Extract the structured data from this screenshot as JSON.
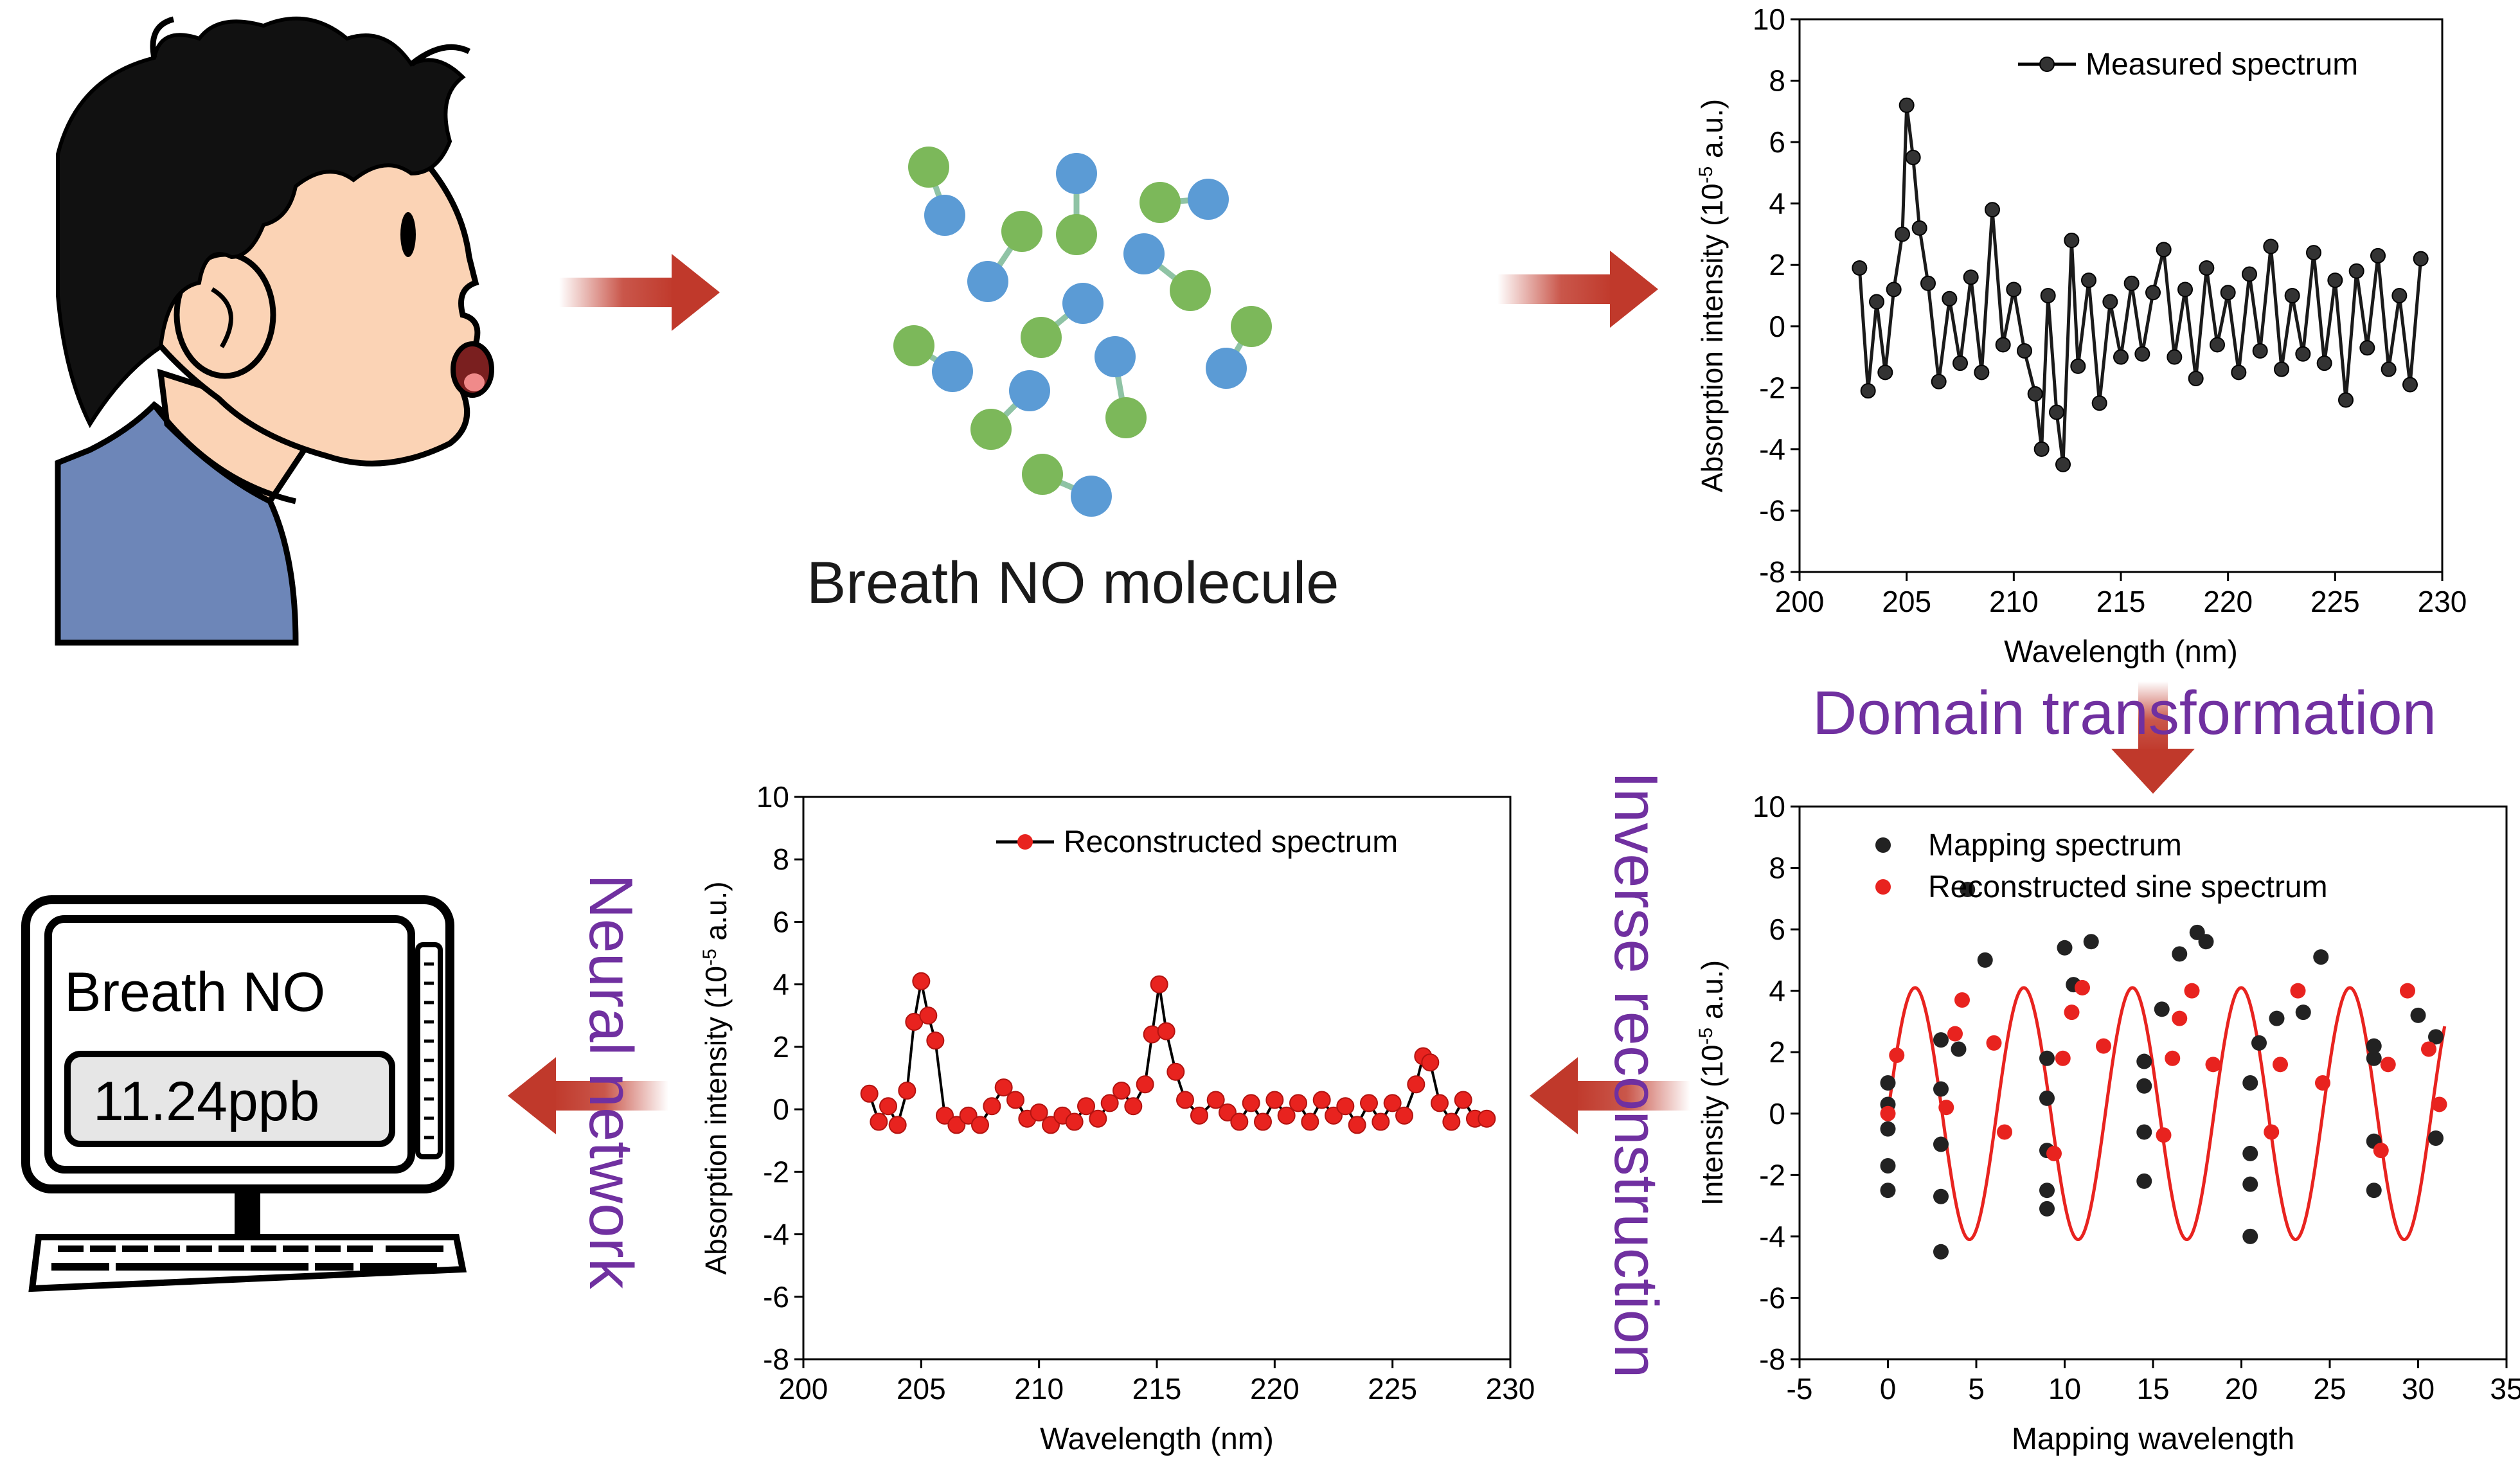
{
  "molecule_caption": "Breath NO molecule",
  "labels": {
    "domain_transformation": "Domain transformation",
    "inverse_reconstruction": "Inverse reconstruction",
    "neural_network": "Neural network"
  },
  "monitor": {
    "title": "Breath NO",
    "value": "11.24ppb"
  },
  "colors": {
    "arrow": "#c0392b",
    "label_purple": "#7030a0",
    "molecule_green": "#7cb85a",
    "molecule_blue": "#5b9bd5",
    "series_black": "#1a1a1a",
    "series_red": "#e8231f",
    "skin": "#fbd3b5",
    "shirt": "#6d86b8"
  },
  "chart_data": [
    {
      "id": "measured",
      "type": "line",
      "title": "",
      "legend": [
        "Measured spectrum"
      ],
      "legend_position": "top-center",
      "xlabel": "Wavelength (nm)",
      "ylabel_main": "Absorption intensity (10",
      "ylabel_sup": "-5",
      "ylabel_end": " a.u.)",
      "xlim": [
        200,
        230
      ],
      "ylim": [
        -8,
        10
      ],
      "xticks": [
        200,
        205,
        210,
        215,
        220,
        225,
        230
      ],
      "yticks": [
        -8,
        -6,
        -4,
        -2,
        0,
        2,
        4,
        6,
        8,
        10
      ],
      "series": [
        {
          "name": "Measured spectrum",
          "color": "#1a1a1a",
          "x": [
            202.8,
            203.2,
            203.6,
            204.0,
            204.4,
            204.8,
            205.0,
            205.3,
            205.6,
            206.0,
            206.5,
            207.0,
            207.5,
            208.0,
            208.5,
            209.0,
            209.5,
            210.0,
            210.5,
            211.0,
            211.3,
            211.6,
            212.0,
            212.3,
            212.7,
            213.0,
            213.5,
            214.0,
            214.5,
            215.0,
            215.5,
            216.0,
            216.5,
            217.0,
            217.5,
            218.0,
            218.5,
            219.0,
            219.5,
            220.0,
            220.5,
            221.0,
            221.5,
            222.0,
            222.5,
            223.0,
            223.5,
            224.0,
            224.5,
            225.0,
            225.5,
            226.0,
            226.5,
            227.0,
            227.5,
            228.0,
            228.5,
            229.0
          ],
          "y": [
            1.9,
            -2.1,
            0.8,
            -1.5,
            1.2,
            3.0,
            7.2,
            5.5,
            3.2,
            1.4,
            -1.8,
            0.9,
            -1.2,
            1.6,
            -1.5,
            3.8,
            -0.6,
            1.2,
            -0.8,
            -2.2,
            -4.0,
            1.0,
            -2.8,
            -4.5,
            2.8,
            -1.3,
            1.5,
            -2.5,
            0.8,
            -1.0,
            1.4,
            -0.9,
            1.1,
            2.5,
            -1.0,
            1.2,
            -1.7,
            1.9,
            -0.6,
            1.1,
            -1.5,
            1.7,
            -0.8,
            2.6,
            -1.4,
            1.0,
            -0.9,
            2.4,
            -1.2,
            1.5,
            -2.4,
            1.8,
            -0.7,
            2.3,
            -1.4,
            1.0,
            -1.9,
            2.2
          ]
        }
      ]
    },
    {
      "id": "mapping",
      "type": "scatter",
      "title": "",
      "legend": [
        "Mapping spectrum",
        "Reconstructed sine spectrum"
      ],
      "legend_position": "top-left",
      "xlabel": "Mapping  wavelength",
      "ylabel_main": "Intensity (10",
      "ylabel_sup": "-5",
      "ylabel_end": " a.u.)",
      "xlim": [
        -5,
        35
      ],
      "ylim": [
        -8,
        10
      ],
      "xticks": [
        -5,
        0,
        5,
        10,
        15,
        20,
        25,
        30,
        35
      ],
      "yticks": [
        -8,
        -6,
        -4,
        -2,
        0,
        2,
        4,
        6,
        8,
        10
      ],
      "series": [
        {
          "name": "Mapping spectrum",
          "color": "#1a1a1a",
          "x": [
            0,
            0,
            0,
            0,
            0,
            3,
            3,
            3,
            3,
            3,
            4,
            4.5,
            5.5,
            9,
            9,
            9,
            9,
            9,
            10,
            10.5,
            11.5,
            14.5,
            14.5,
            14.5,
            14.5,
            15.5,
            16.5,
            17.5,
            18,
            20.5,
            20.5,
            20.5,
            20.5,
            21,
            22,
            23.5,
            24.5,
            27.5,
            27.5,
            27.5,
            27.5,
            30,
            31,
            31
          ],
          "y": [
            1.0,
            -0.5,
            -1.7,
            -2.5,
            0.3,
            2.4,
            -1.0,
            -2.7,
            -4.5,
            0.8,
            2.1,
            7.3,
            5.0,
            -1.2,
            -2.5,
            1.8,
            0.5,
            -3.1,
            5.4,
            4.2,
            5.6,
            1.7,
            -0.6,
            -2.2,
            0.9,
            3.4,
            5.2,
            5.9,
            5.6,
            -1.3,
            -2.3,
            -4.0,
            1.0,
            2.3,
            3.1,
            3.3,
            5.1,
            1.8,
            -0.9,
            -2.5,
            2.2,
            3.2,
            2.5,
            -0.8
          ]
        },
        {
          "name": "Reconstructed sine spectrum",
          "color": "#e8231f",
          "amplitude": 4.1,
          "period": 6.15,
          "phase_zero_at": 0,
          "xrange": [
            0,
            31.5
          ],
          "x": [
            0,
            0.5,
            3.3,
            3.8,
            4.2,
            6.0,
            6.6,
            9.4,
            9.9,
            10.4,
            11.0,
            12.2,
            15.6,
            16.1,
            16.5,
            17.2,
            18.4,
            21.7,
            22.2,
            23.2,
            24.6,
            27.9,
            28.3,
            29.4,
            30.6,
            31.2
          ],
          "y": [
            0,
            1.9,
            0.2,
            2.6,
            3.7,
            2.3,
            -0.6,
            -1.3,
            1.8,
            3.3,
            4.1,
            2.2,
            -0.7,
            1.8,
            3.1,
            4.0,
            1.6,
            -0.6,
            1.6,
            4.0,
            1.0,
            -1.2,
            1.6,
            4.0,
            2.1,
            0.3
          ]
        }
      ]
    },
    {
      "id": "reconstructed",
      "type": "line",
      "title": "",
      "legend": [
        "Reconstructed spectrum"
      ],
      "legend_position": "top-center",
      "xlabel": "Wavelength (nm)",
      "ylabel_main": "Absorption intensity (10",
      "ylabel_sup": "-5",
      "ylabel_end": " a.u.)",
      "xlim": [
        200,
        230
      ],
      "ylim": [
        -8,
        10
      ],
      "xticks": [
        200,
        205,
        210,
        215,
        220,
        225,
        230
      ],
      "yticks": [
        -8,
        -6,
        -4,
        -2,
        0,
        2,
        4,
        6,
        8,
        10
      ],
      "series": [
        {
          "name": "Reconstructed spectrum",
          "color": "#e8231f",
          "x": [
            202.8,
            203.2,
            203.6,
            204.0,
            204.4,
            204.7,
            205.0,
            205.3,
            205.6,
            206.0,
            206.5,
            207.0,
            207.5,
            208.0,
            208.5,
            209.0,
            209.5,
            210.0,
            210.5,
            211.0,
            211.5,
            212.0,
            212.5,
            213.0,
            213.5,
            214.0,
            214.5,
            214.8,
            215.1,
            215.4,
            215.8,
            216.2,
            216.8,
            217.5,
            218.0,
            218.5,
            219.0,
            219.5,
            220.0,
            220.5,
            221.0,
            221.5,
            222.0,
            222.5,
            223.0,
            223.5,
            224.0,
            224.5,
            225.0,
            225.5,
            226.0,
            226.3,
            226.6,
            227.0,
            227.5,
            228.0,
            228.5,
            229.0
          ],
          "y": [
            0.5,
            -0.4,
            0.1,
            -0.5,
            0.6,
            2.8,
            4.1,
            3.0,
            2.2,
            -0.2,
            -0.5,
            -0.2,
            -0.5,
            0.1,
            0.7,
            0.3,
            -0.3,
            -0.1,
            -0.5,
            -0.2,
            -0.4,
            0.1,
            -0.3,
            0.2,
            0.6,
            0.1,
            0.8,
            2.4,
            4.0,
            2.5,
            1.2,
            0.3,
            -0.2,
            0.3,
            -0.1,
            -0.4,
            0.2,
            -0.4,
            0.3,
            -0.2,
            0.2,
            -0.4,
            0.3,
            -0.2,
            0.1,
            -0.5,
            0.2,
            -0.4,
            0.2,
            -0.2,
            0.8,
            1.7,
            1.5,
            0.2,
            -0.4,
            0.3,
            -0.3,
            -0.3
          ]
        }
      ]
    }
  ]
}
